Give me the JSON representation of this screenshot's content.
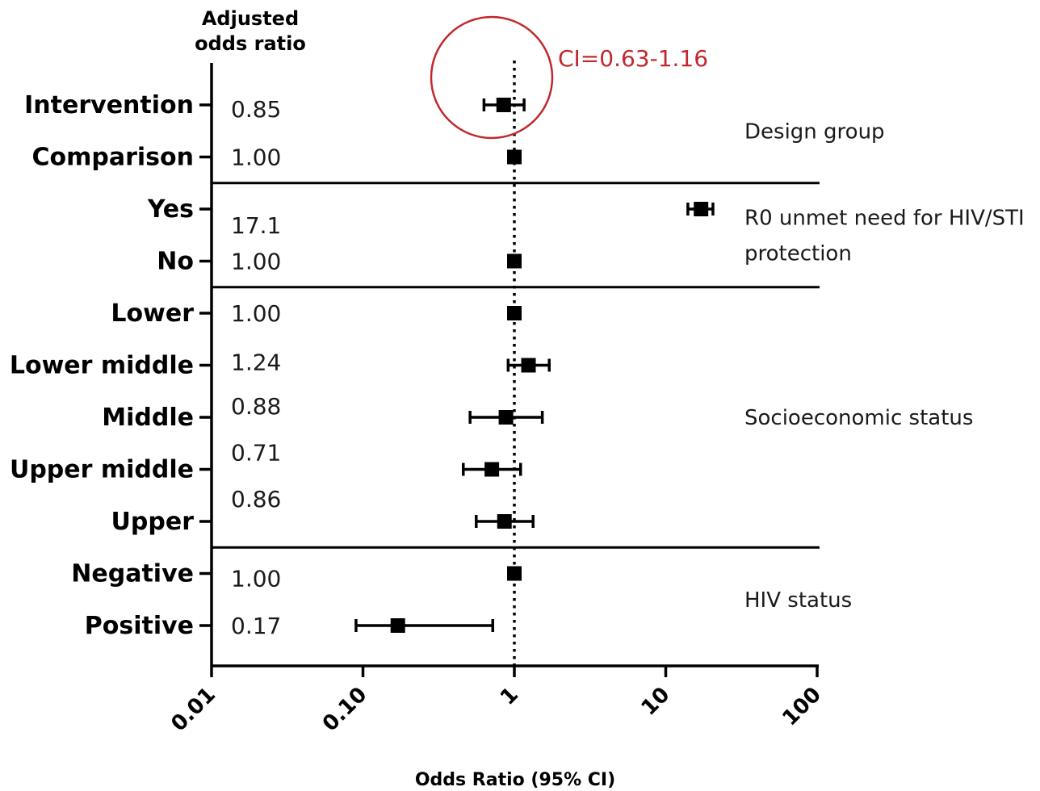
{
  "chart_data": {
    "type": "forest",
    "column_header": [
      "Adjusted",
      "odds ratio"
    ],
    "x_axis": {
      "title": "Odds Ratio (95% CI)",
      "scale": "log",
      "range": [
        0.01,
        100
      ],
      "ticks": [
        {
          "value": 0.01,
          "label": "0.01"
        },
        {
          "value": 0.1,
          "label": "0.10"
        },
        {
          "value": 1,
          "label": "1"
        },
        {
          "value": 10,
          "label": "10"
        },
        {
          "value": 100,
          "label": "100"
        }
      ],
      "tick_label_rotation_deg": -45
    },
    "reference_line": {
      "value": 1,
      "style": "dotted"
    },
    "rows": [
      {
        "label": "Intervention",
        "aor_text": "0.85",
        "or": 0.85,
        "ci": [
          0.63,
          1.16
        ]
      },
      {
        "label": "Comparison",
        "aor_text": "1.00",
        "or": 1.0,
        "ci": null
      },
      {
        "label": "Yes",
        "aor_text": "17.1",
        "or": 17.1,
        "ci": [
          14.0,
          20.5
        ]
      },
      {
        "label": "No",
        "aor_text": "1.00",
        "or": 1.0,
        "ci": null
      },
      {
        "label": "Lower",
        "aor_text": "1.00",
        "or": 1.0,
        "ci": null
      },
      {
        "label": "Lower middle",
        "aor_text": "1.24",
        "or": 1.24,
        "ci": [
          0.91,
          1.7
        ]
      },
      {
        "label": "Middle",
        "aor_text": "0.88",
        "or": 0.88,
        "ci": [
          0.51,
          1.53
        ]
      },
      {
        "label": "Upper middle",
        "aor_text": "0.71",
        "or": 0.71,
        "ci": [
          0.46,
          1.1
        ]
      },
      {
        "label": "Upper",
        "aor_text": "0.86",
        "or": 0.86,
        "ci": [
          0.56,
          1.33
        ]
      },
      {
        "label": "Negative",
        "aor_text": "1.00",
        "or": 1.0,
        "ci": null
      },
      {
        "label": "Positive",
        "aor_text": "0.17",
        "or": 0.17,
        "ci": [
          0.09,
          0.72
        ]
      }
    ],
    "groups": [
      {
        "lines": [
          "Design group"
        ],
        "rows": [
          0,
          1
        ]
      },
      {
        "lines": [
          "R0 unmet need for HIV/STI",
          "protection"
        ],
        "rows": [
          2,
          3
        ]
      },
      {
        "lines": [
          "Socioeconomic status"
        ],
        "rows": [
          4,
          5,
          6,
          7,
          8
        ]
      },
      {
        "lines": [
          "HIV status"
        ],
        "rows": [
          9,
          10
        ]
      }
    ],
    "annotation": {
      "text": "CI=0.63-1.16",
      "target_row": 0,
      "color": "#c0282d",
      "shape": "circle"
    },
    "colors": {
      "marker": "#000000",
      "axis": "#000000"
    }
  }
}
